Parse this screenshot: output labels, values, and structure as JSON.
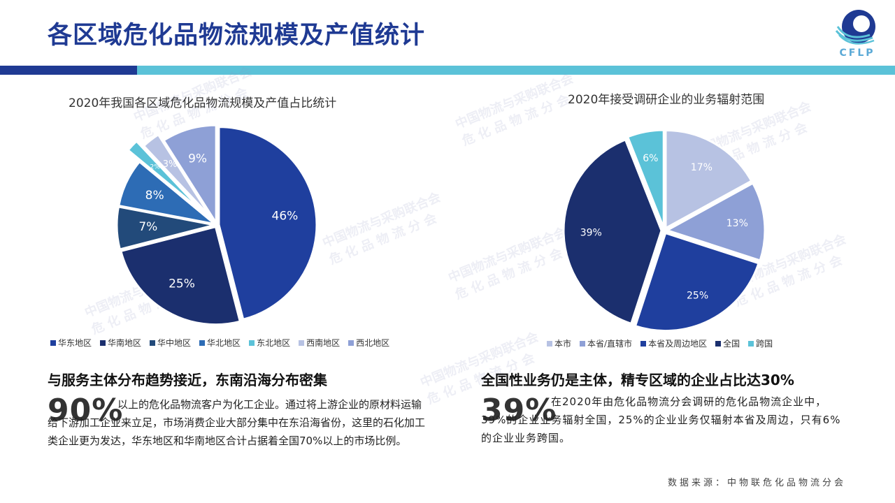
{
  "header": {
    "title": "各区域危化品物流规模及产值统计",
    "logo_text": "CFLP"
  },
  "watermark": {
    "line1": "中国物流与采购联合会",
    "line2": "危 化 品 物 流 分 会"
  },
  "chart_data": [
    {
      "type": "pie",
      "title": "2020年我国各区域危化品物流规模及产值占比统计",
      "categories": [
        "华东地区",
        "华南地区",
        "华中地区",
        "华北地区",
        "东北地区",
        "西南地区",
        "西北地区"
      ],
      "values": [
        46,
        25,
        7,
        8,
        2,
        3,
        9
      ],
      "labels": [
        "46%",
        "25%",
        "7%",
        "8%",
        "2%",
        "3%",
        "9%"
      ],
      "colors": [
        "#1f3f9e",
        "#1b2f6e",
        "#224a7a",
        "#2d6cb5",
        "#5bc2d8",
        "#b7c2e3",
        "#8ea0d6"
      ],
      "legend_position": "bottom"
    },
    {
      "type": "pie",
      "title": "2020年接受调研企业的业务辐射范围",
      "categories": [
        "本市",
        "本省/直辖市",
        "本省及周边地区",
        "全国",
        "跨国"
      ],
      "values": [
        17,
        13,
        25,
        39,
        6
      ],
      "labels": [
        "17%",
        "13%",
        "25%",
        "39%",
        "6%"
      ],
      "colors": [
        "#b7c2e3",
        "#8ea0d6",
        "#1f3f9e",
        "#1b2f6e",
        "#5bc2d8"
      ],
      "legend_position": "bottom"
    }
  ],
  "left_section": {
    "heading": "与服务主体分布趋势接近，东南沿海分布密集",
    "big_number": "90%",
    "text": "以上的危化品物流客户为化工企业。通过将上游企业的原材料运输给下游加工企业来立足，市场消费企业大部分集中在东沿海省份，这里的石化加工类企业更为发达，华东地区和华南地区合计占据着全国70%以上的市场比例。"
  },
  "right_section": {
    "heading": "全国性业务仍是主体，精专区域的企业占比达30%",
    "big_number": "39%",
    "text": "在2020年由危化品物流分会调研的危化品物流企业中，39%的企业业务辐射全国，25%的企业业务仅辐射本省及周边，只有6%的企业业务跨国。"
  },
  "footer": {
    "source": "数据来源：中物联危化品物流分会"
  }
}
